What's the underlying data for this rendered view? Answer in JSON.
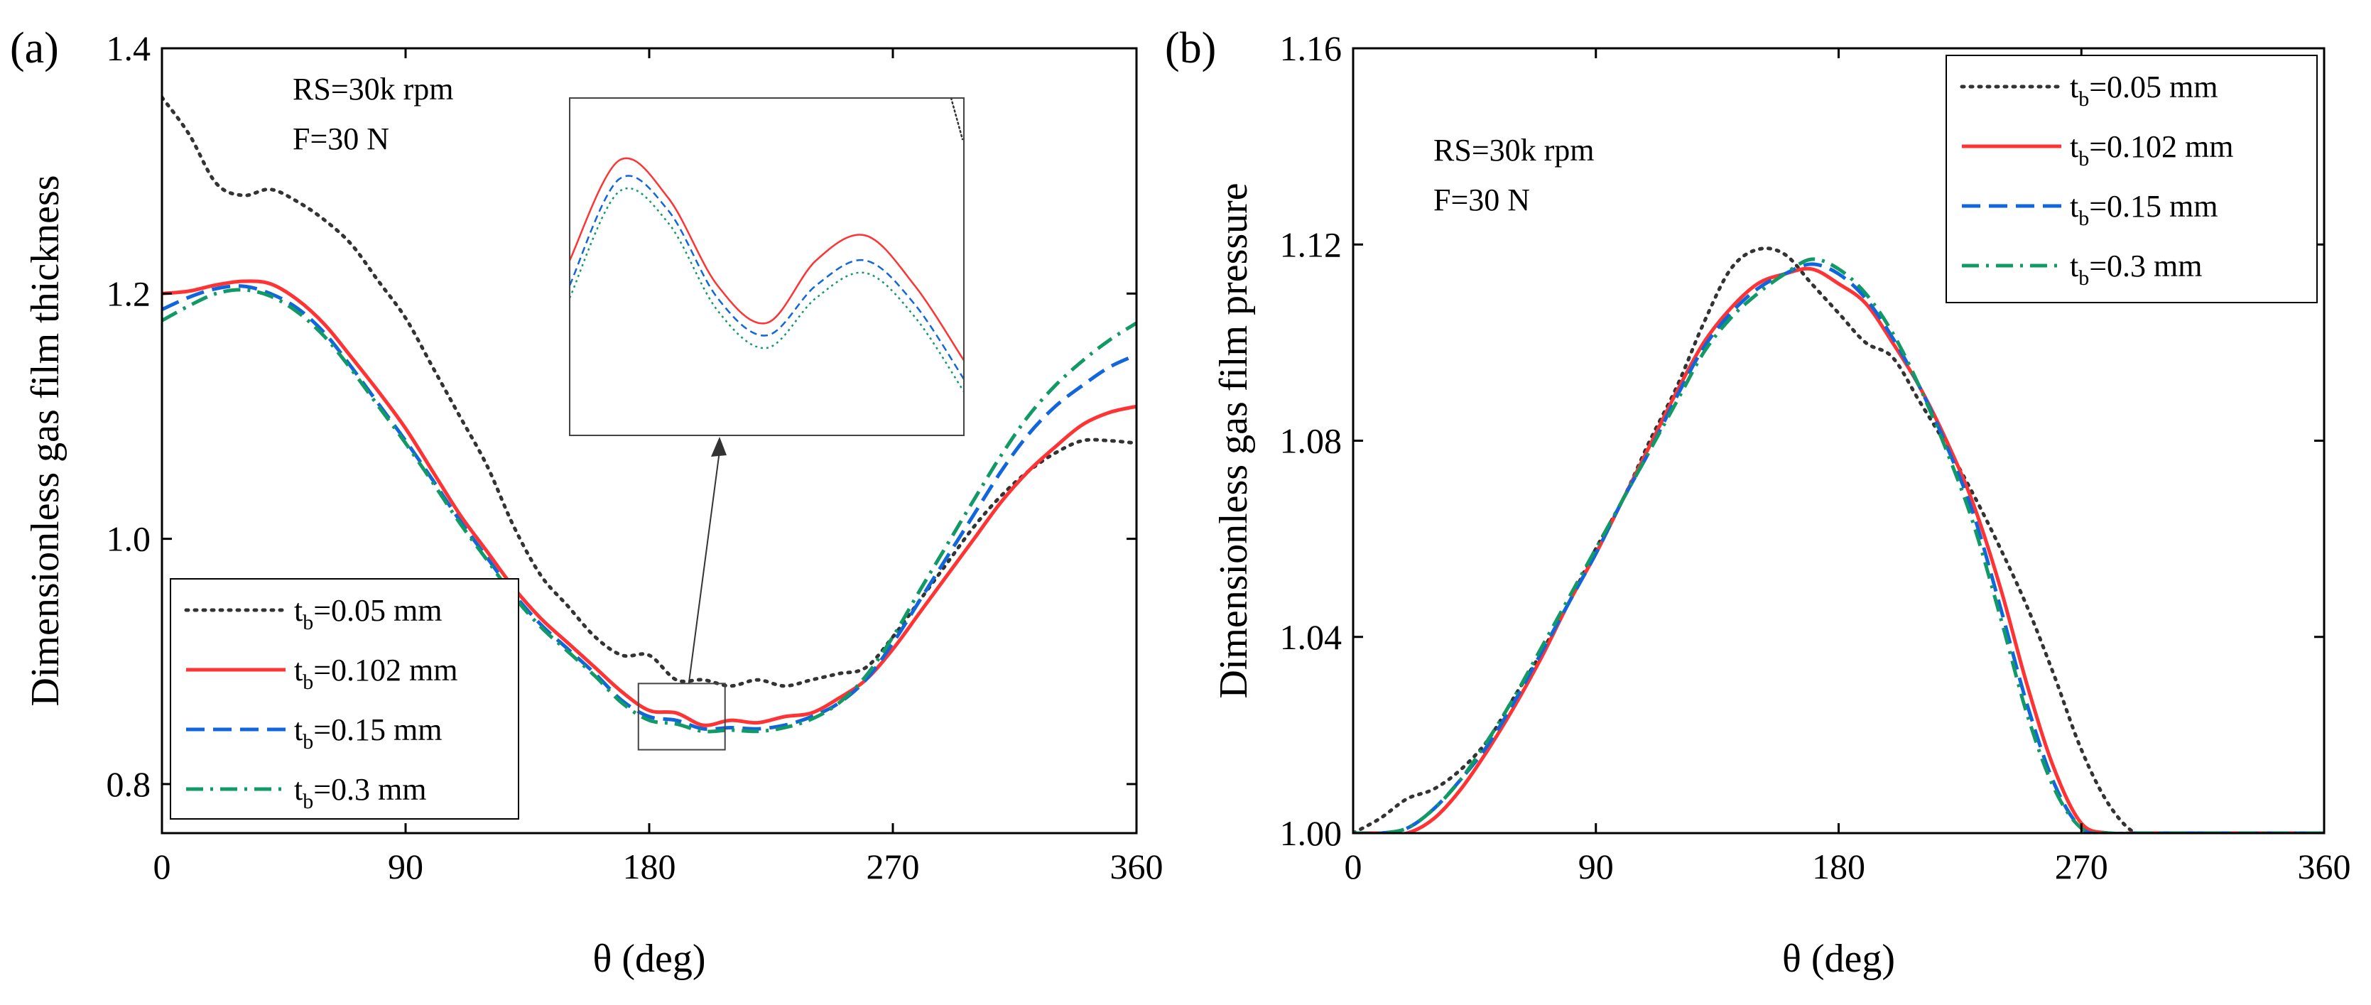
{
  "figure": {
    "colors": {
      "dotted": "#333333",
      "solid": "#ff3333",
      "dashed": "#1166dd",
      "dashdot": "#119966",
      "frame": "#000000"
    },
    "series_styles": {
      "dotted": {
        "color": "#333333",
        "dash": "dotted"
      },
      "solid": {
        "color": "#ff3333",
        "dash": "solid"
      },
      "dashed": {
        "color": "#1166dd",
        "dash": "dashed"
      },
      "dashdot": {
        "color": "#119966",
        "dash": "dashdot"
      }
    }
  },
  "chart_data": [
    {
      "id": "a",
      "panel_label": "(a)",
      "type": "line",
      "xlabel": "θ (deg)",
      "ylabel": "Dimensionless gas film thickness",
      "xlim": [
        0,
        360
      ],
      "ylim": [
        0.76,
        1.4
      ],
      "xticks": [
        0,
        90,
        180,
        270,
        360
      ],
      "xtick_labels": [
        "0",
        "90",
        "180",
        "270",
        "360"
      ],
      "yticks": [
        0.8,
        1.0,
        1.2,
        1.4
      ],
      "ytick_labels": [
        "0.8",
        "1.0",
        "1.2",
        "1.4"
      ],
      "annotation": {
        "line1": "RS=30k rpm",
        "line2": "F=30 N"
      },
      "legend_position": "bottom-left",
      "series": [
        {
          "name": "tb=0.05 mm",
          "label_main": "t",
          "label_sub": "b",
          "label_rest": "=0.05 mm",
          "style": "dotted",
          "x": [
            0,
            10,
            20,
            30,
            40,
            50,
            60,
            70,
            80,
            90,
            100,
            110,
            120,
            130,
            140,
            150,
            160,
            170,
            180,
            190,
            200,
            210,
            220,
            230,
            240,
            250,
            260,
            270,
            280,
            290,
            300,
            310,
            320,
            330,
            340,
            350,
            360
          ],
          "y": [
            1.36,
            1.33,
            1.29,
            1.28,
            1.285,
            1.275,
            1.26,
            1.24,
            1.21,
            1.18,
            1.14,
            1.1,
            1.06,
            1.01,
            0.97,
            0.945,
            0.92,
            0.905,
            0.905,
            0.885,
            0.885,
            0.88,
            0.885,
            0.88,
            0.885,
            0.89,
            0.895,
            0.92,
            0.95,
            0.98,
            1.01,
            1.035,
            1.055,
            1.07,
            1.08,
            1.08,
            1.078
          ]
        },
        {
          "name": "tb=0.102 mm",
          "label_main": "t",
          "label_sub": "b",
          "label_rest": "=0.102 mm",
          "style": "solid",
          "x": [
            0,
            10,
            20,
            30,
            40,
            50,
            60,
            70,
            80,
            90,
            100,
            110,
            120,
            130,
            140,
            150,
            160,
            170,
            180,
            190,
            200,
            210,
            220,
            230,
            240,
            250,
            260,
            270,
            280,
            290,
            300,
            310,
            320,
            330,
            340,
            350,
            360
          ],
          "y": [
            1.2,
            1.202,
            1.207,
            1.21,
            1.208,
            1.195,
            1.175,
            1.148,
            1.12,
            1.09,
            1.055,
            1.02,
            0.99,
            0.96,
            0.935,
            0.915,
            0.895,
            0.875,
            0.86,
            0.858,
            0.848,
            0.852,
            0.85,
            0.855,
            0.858,
            0.87,
            0.885,
            0.91,
            0.94,
            0.97,
            1.0,
            1.03,
            1.055,
            1.075,
            1.093,
            1.103,
            1.108
          ]
        },
        {
          "name": "tb=0.15 mm",
          "label_main": "t",
          "label_sub": "b",
          "label_rest": "=0.15 mm",
          "style": "dashed",
          "x": [
            0,
            10,
            20,
            30,
            40,
            50,
            60,
            70,
            80,
            90,
            100,
            110,
            120,
            130,
            140,
            150,
            160,
            170,
            180,
            190,
            200,
            210,
            220,
            230,
            240,
            250,
            260,
            270,
            280,
            290,
            300,
            310,
            320,
            330,
            340,
            350,
            360
          ],
          "y": [
            1.187,
            1.197,
            1.204,
            1.206,
            1.2,
            1.188,
            1.168,
            1.14,
            1.11,
            1.08,
            1.048,
            1.015,
            0.985,
            0.955,
            0.93,
            0.91,
            0.89,
            0.868,
            0.855,
            0.852,
            0.845,
            0.846,
            0.845,
            0.848,
            0.855,
            0.866,
            0.885,
            0.915,
            0.95,
            0.985,
            1.02,
            1.055,
            1.085,
            1.108,
            1.125,
            1.14,
            1.15
          ]
        },
        {
          "name": "tb=0.3 mm",
          "label_main": "t",
          "label_sub": "b",
          "label_rest": "=0.3 mm",
          "style": "dashdot",
          "x": [
            0,
            10,
            20,
            30,
            40,
            50,
            60,
            70,
            80,
            90,
            100,
            110,
            120,
            130,
            140,
            150,
            160,
            170,
            180,
            190,
            200,
            210,
            220,
            230,
            240,
            250,
            260,
            270,
            280,
            290,
            300,
            310,
            320,
            330,
            340,
            350,
            360
          ],
          "y": [
            1.178,
            1.19,
            1.2,
            1.203,
            1.198,
            1.185,
            1.165,
            1.138,
            1.108,
            1.078,
            1.046,
            1.013,
            0.983,
            0.953,
            0.928,
            0.908,
            0.888,
            0.866,
            0.852,
            0.849,
            0.843,
            0.844,
            0.843,
            0.846,
            0.853,
            0.866,
            0.888,
            0.92,
            0.958,
            0.995,
            1.032,
            1.068,
            1.1,
            1.125,
            1.145,
            1.162,
            1.176
          ]
        }
      ],
      "inset": {
        "xlim": [
          176,
          208
        ],
        "ylim": [
          0.828,
          0.882
        ],
        "source_box": {
          "x": [
            176,
            208
          ],
          "y": [
            0.828,
            0.882
          ]
        },
        "series": [
          {
            "style": "solid",
            "x": [
              176,
              180,
              184,
              188,
              192,
              196,
              200,
              204,
              208
            ],
            "y": [
              0.856,
              0.872,
              0.866,
              0.852,
              0.846,
              0.856,
              0.86,
              0.852,
              0.84
            ]
          },
          {
            "style": "dashed",
            "x": [
              176,
              180,
              184,
              188,
              192,
              196,
              200,
              204,
              208
            ],
            "y": [
              0.852,
              0.869,
              0.864,
              0.85,
              0.844,
              0.852,
              0.856,
              0.849,
              0.837
            ]
          },
          {
            "style": "dashdot",
            "x": [
              176,
              180,
              184,
              188,
              192,
              196,
              200,
              204,
              208
            ],
            "y": [
              0.85,
              0.867,
              0.862,
              0.848,
              0.842,
              0.85,
              0.854,
              0.847,
              0.835
            ]
          }
        ]
      }
    },
    {
      "id": "b",
      "panel_label": "(b)",
      "type": "line",
      "xlabel": "θ (deg)",
      "ylabel": "Dimensionless gas film pressure",
      "xlim": [
        0,
        360
      ],
      "ylim": [
        1.0,
        1.16
      ],
      "xticks": [
        0,
        90,
        180,
        270,
        360
      ],
      "xtick_labels": [
        "0",
        "90",
        "180",
        "270",
        "360"
      ],
      "yticks": [
        1.0,
        1.04,
        1.08,
        1.12,
        1.16
      ],
      "ytick_labels": [
        "1.00",
        "1.04",
        "1.08",
        "1.12",
        "1.16"
      ],
      "annotation": {
        "line1": "RS=30k rpm",
        "line2": "F=30 N"
      },
      "legend_position": "top-right",
      "series": [
        {
          "name": "tb=0.05 mm",
          "label_main": "t",
          "label_sub": "b",
          "label_rest": "=0.05 mm",
          "style": "dotted",
          "x": [
            0,
            10,
            20,
            30,
            40,
            50,
            60,
            70,
            80,
            90,
            100,
            110,
            120,
            130,
            140,
            150,
            160,
            170,
            180,
            190,
            200,
            210,
            220,
            230,
            240,
            250,
            260,
            270,
            280,
            290,
            300,
            310,
            320,
            330,
            340,
            350,
            360
          ],
          "y": [
            1.0,
            1.003,
            1.007,
            1.009,
            1.013,
            1.019,
            1.028,
            1.037,
            1.047,
            1.058,
            1.068,
            1.08,
            1.091,
            1.104,
            1.115,
            1.119,
            1.118,
            1.112,
            1.106,
            1.1,
            1.097,
            1.088,
            1.079,
            1.069,
            1.058,
            1.046,
            1.032,
            1.017,
            1.006,
            1.0,
            1.0,
            1.0,
            1.0,
            1.0,
            1.0,
            1.0,
            1.0
          ]
        },
        {
          "name": "tb=0.102 mm",
          "label_main": "t",
          "label_sub": "b",
          "label_rest": "=0.102 mm",
          "style": "solid",
          "x": [
            0,
            10,
            20,
            30,
            40,
            50,
            60,
            70,
            80,
            90,
            100,
            110,
            120,
            130,
            140,
            150,
            160,
            170,
            180,
            190,
            200,
            210,
            220,
            230,
            240,
            250,
            260,
            270,
            280,
            290,
            300,
            310,
            320,
            330,
            340,
            350,
            360
          ],
          "y": [
            1.0,
            1.0,
            1.0,
            1.003,
            1.009,
            1.017,
            1.026,
            1.036,
            1.047,
            1.057,
            1.068,
            1.079,
            1.09,
            1.1,
            1.107,
            1.112,
            1.114,
            1.115,
            1.112,
            1.108,
            1.1,
            1.091,
            1.08,
            1.067,
            1.05,
            1.03,
            1.013,
            1.002,
            1.0,
            1.0,
            1.0,
            1.0,
            1.0,
            1.0,
            1.0,
            1.0,
            1.0
          ]
        },
        {
          "name": "tb=0.15 mm",
          "label_main": "t",
          "label_sub": "b",
          "label_rest": "=0.15 mm",
          "style": "dashed",
          "x": [
            0,
            10,
            20,
            30,
            40,
            50,
            60,
            70,
            80,
            90,
            100,
            110,
            120,
            130,
            140,
            150,
            160,
            170,
            180,
            190,
            200,
            210,
            220,
            230,
            240,
            250,
            260,
            270,
            280,
            290,
            300,
            310,
            320,
            330,
            340,
            350,
            360
          ],
          "y": [
            1.0,
            1.0,
            1.001,
            1.005,
            1.011,
            1.018,
            1.027,
            1.037,
            1.047,
            1.057,
            1.068,
            1.078,
            1.089,
            1.099,
            1.106,
            1.111,
            1.114,
            1.116,
            1.114,
            1.109,
            1.101,
            1.091,
            1.079,
            1.065,
            1.046,
            1.026,
            1.01,
            1.001,
            1.0,
            1.0,
            1.0,
            1.0,
            1.0,
            1.0,
            1.0,
            1.0,
            1.0
          ]
        },
        {
          "name": "tb=0.3 mm",
          "label_main": "t",
          "label_sub": "b",
          "label_rest": "=0.3 mm",
          "style": "dashdot",
          "x": [
            0,
            10,
            20,
            30,
            40,
            50,
            60,
            70,
            80,
            90,
            100,
            110,
            120,
            130,
            140,
            150,
            160,
            170,
            180,
            190,
            200,
            210,
            220,
            230,
            240,
            250,
            260,
            270,
            280,
            290,
            300,
            310,
            320,
            330,
            340,
            350,
            360
          ],
          "y": [
            1.0,
            1.0,
            1.001,
            1.005,
            1.011,
            1.019,
            1.028,
            1.038,
            1.048,
            1.058,
            1.068,
            1.078,
            1.088,
            1.098,
            1.105,
            1.11,
            1.114,
            1.117,
            1.115,
            1.11,
            1.102,
            1.091,
            1.078,
            1.063,
            1.044,
            1.024,
            1.009,
            1.001,
            1.0,
            1.0,
            1.0,
            1.0,
            1.0,
            1.0,
            1.0,
            1.0,
            1.0
          ]
        }
      ]
    }
  ]
}
